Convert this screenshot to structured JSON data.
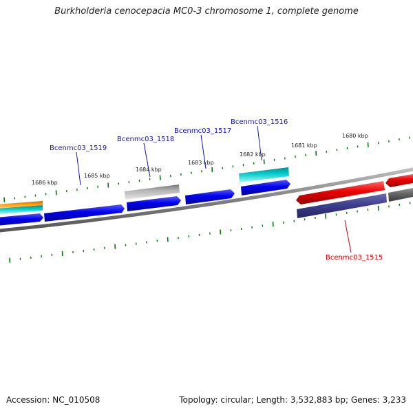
{
  "title": "Burkholderia cenocepacia MC0-3 chromosome 1, complete genome",
  "footer": {
    "accession": "Accession: NC_010508",
    "topology": "Topology: circular; Length: 3,532,883 bp; Genes: 3,233"
  },
  "scale_labels": [
    "1686 kbp",
    "1685 kbp",
    "1684 kbp",
    "1683 kbp",
    "1682 kbp",
    "1681 kbp",
    "1680 kbp"
  ],
  "gene_labels": {
    "g1519": "Bcenmc03_1519",
    "g1518": "Bcenmc03_1518",
    "g1517": "Bcenmc03_1517",
    "g1516": "Bcenmc03_1516",
    "g1515": "Bcenmc03_1515"
  },
  "colors": {
    "cds_blue": "#0000ee",
    "cds_red": "#ee0000",
    "cds_cyan": "#00c8c8",
    "cds_gray": "#a0a0a0",
    "cds_orange": "#ff9900",
    "cds_slate": "#3f3f8f",
    "backbone": "#888888",
    "tick_green": "#007a00"
  }
}
